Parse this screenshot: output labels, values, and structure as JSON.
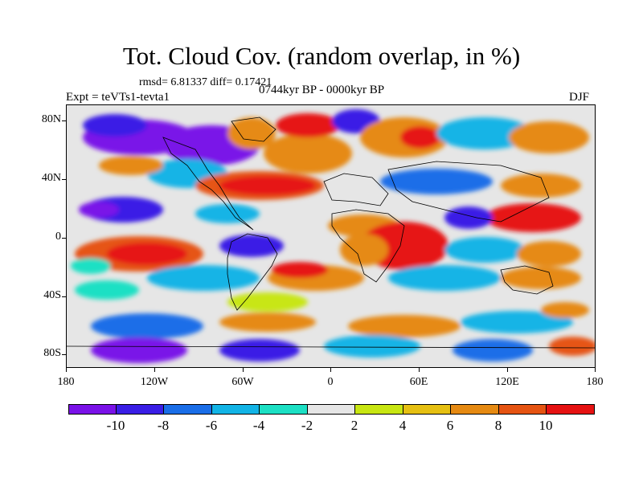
{
  "title": "Tot. Cloud Cov. (random overlap, in %)",
  "stats": "rmsd= 6.81337 diff= 0.17421",
  "period": "0744kyr BP - 0000kyr BP",
  "experiment": "Expt = teVTs1-tevta1",
  "season": "DJF",
  "axes": {
    "lat_labels": [
      "80N",
      "40N",
      "0",
      "40S",
      "80S"
    ],
    "lon_labels": [
      "180",
      "120W",
      "60W",
      "0",
      "60E",
      "120E",
      "180"
    ]
  },
  "colorbar": {
    "labels": [
      "-10",
      "-8",
      "-6",
      "-4",
      "-2",
      "2",
      "4",
      "6",
      "8",
      "10"
    ],
    "colors": [
      "#7a12e8",
      "#3a1ee6",
      "#1a6ee8",
      "#12b4e6",
      "#1ce0c4",
      "#e6e6e6",
      "#c8e612",
      "#e6c012",
      "#e68a12",
      "#e65412",
      "#e61212"
    ]
  }
}
